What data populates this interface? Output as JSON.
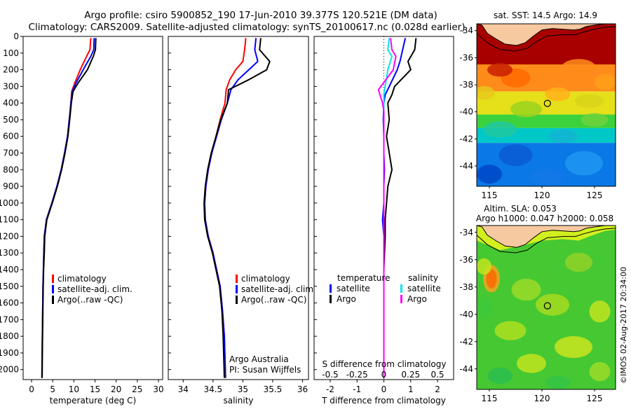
{
  "title": {
    "line1": "Argo profile: csiro 5900852_190 17-Jun-2010 39.377S 120.521E (DM data)",
    "line2": "Climatology: CARS2009. Satellite-adjusted climatology: synTS_20100617.nc (0.028d earlier)"
  },
  "colors": {
    "climatology": "#ff0000",
    "satellite": "#0000ff",
    "argo": "#000000",
    "cyan": "#00e5ee",
    "magenta": "#ff00ff",
    "land": "#f7c9a0"
  },
  "credit": "©IMOS 02-Aug-2017 20:34:00",
  "depth_axis": {
    "ylim": [
      0,
      2060
    ],
    "ticks": [
      0,
      100,
      200,
      300,
      400,
      500,
      600,
      700,
      800,
      900,
      1000,
      1100,
      1200,
      1300,
      1400,
      1500,
      1600,
      1700,
      1800,
      1900,
      2000
    ]
  },
  "chart_data": [
    {
      "type": "line",
      "id": "temperature",
      "xlabel": "temperature (deg C)",
      "ylabel": "depth",
      "xlim": [
        -2,
        31
      ],
      "ylim": [
        0,
        2060
      ],
      "y_inverted": true,
      "xticks": [
        0,
        5,
        10,
        15,
        20,
        25,
        30
      ],
      "legend": {
        "placement": "lower-left",
        "entries": [
          "climatology",
          "satellite-adj. clim.",
          "Argo(..raw -QC)"
        ]
      },
      "series": [
        {
          "name": "climatology",
          "color": "#ff0000",
          "x": [
            14.0,
            13.8,
            13.0,
            11.5,
            10.2,
            9.5,
            9.3,
            9.0,
            8.5,
            7.8,
            7.0,
            6.0,
            4.8,
            3.5,
            3.0,
            2.9,
            2.8,
            2.7,
            2.6,
            2.5,
            2.45
          ],
          "y": [
            10,
            80,
            120,
            200,
            280,
            330,
            400,
            480,
            600,
            700,
            800,
            900,
            1000,
            1100,
            1200,
            1300,
            1400,
            1500,
            1700,
            1900,
            2050
          ]
        },
        {
          "name": "satellite-adj. clim.",
          "color": "#0000ff",
          "x": [
            14.8,
            14.7,
            14.0,
            12.2,
            10.5,
            9.6,
            9.3,
            9.0,
            8.5,
            7.8,
            7.0,
            6.0,
            4.8,
            3.5,
            3.0,
            2.9,
            2.8,
            2.7,
            2.6,
            2.5,
            2.45
          ],
          "y": [
            10,
            80,
            120,
            200,
            280,
            330,
            400,
            480,
            600,
            700,
            800,
            900,
            1000,
            1100,
            1200,
            1300,
            1400,
            1500,
            1700,
            1900,
            2050
          ]
        },
        {
          "name": "Argo(..raw -QC)",
          "color": "#000000",
          "x": [
            15.2,
            15.1,
            14.6,
            13.2,
            11.0,
            9.8,
            9.4,
            9.1,
            8.6,
            7.9,
            7.1,
            6.1,
            4.9,
            3.6,
            3.1,
            3.0,
            2.85,
            2.75,
            2.65,
            2.55,
            2.5
          ],
          "y": [
            10,
            80,
            120,
            200,
            280,
            330,
            400,
            480,
            600,
            700,
            800,
            900,
            1000,
            1100,
            1200,
            1300,
            1400,
            1500,
            1700,
            1900,
            2050
          ]
        }
      ]
    },
    {
      "type": "line",
      "id": "salinity",
      "xlabel": "salinity",
      "ylabel": "depth",
      "xlim": [
        33.75,
        36.1
      ],
      "ylim": [
        0,
        2060
      ],
      "y_inverted": true,
      "xticks": [
        34,
        34.5,
        35,
        35.5,
        36
      ],
      "xtick_labels": [
        "34",
        "34.5",
        "35",
        "35.5",
        "36"
      ],
      "legend": {
        "placement": "lower-right",
        "entries": [
          "climatology",
          "satellite-adj. clim.",
          "Argo(..raw -QC)"
        ]
      },
      "annotation": {
        "line1": "Argo Australia",
        "line2": "PI: Susan Wijffels"
      },
      "series": [
        {
          "name": "climatology",
          "color": "#ff0000",
          "x": [
            35.05,
            35.03,
            35.0,
            34.88,
            34.78,
            34.72,
            34.7,
            34.62,
            34.55,
            34.48,
            34.42,
            34.38,
            34.36,
            34.37,
            34.42,
            34.5,
            34.56,
            34.62,
            34.66,
            34.69,
            34.71
          ],
          "y": [
            10,
            80,
            150,
            200,
            260,
            320,
            400,
            500,
            600,
            700,
            800,
            900,
            1000,
            1100,
            1200,
            1300,
            1400,
            1500,
            1650,
            1800,
            2050
          ]
        },
        {
          "name": "satellite-adj. clim.",
          "color": "#0000ff",
          "x": [
            35.22,
            35.2,
            35.25,
            35.1,
            34.92,
            34.8,
            34.74,
            34.64,
            34.56,
            34.48,
            34.42,
            34.38,
            34.36,
            34.37,
            34.42,
            34.5,
            34.56,
            34.62,
            34.66,
            34.69,
            34.71
          ],
          "y": [
            10,
            80,
            150,
            200,
            260,
            320,
            400,
            500,
            600,
            700,
            800,
            900,
            1000,
            1100,
            1200,
            1300,
            1400,
            1500,
            1650,
            1800,
            2050
          ]
        },
        {
          "name": "Argo(..raw -QC)",
          "color": "#000000",
          "x": [
            35.3,
            35.28,
            35.45,
            35.4,
            35.1,
            34.76,
            34.74,
            34.63,
            34.55,
            34.47,
            34.41,
            34.37,
            34.35,
            34.36,
            34.41,
            34.49,
            34.55,
            34.61,
            34.65,
            34.67,
            34.69
          ],
          "y": [
            10,
            80,
            150,
            200,
            260,
            320,
            400,
            500,
            600,
            700,
            800,
            900,
            1000,
            1100,
            1200,
            1300,
            1400,
            1500,
            1650,
            1800,
            2050
          ]
        }
      ]
    },
    {
      "type": "line",
      "id": "difference",
      "xlabel": "T difference from climatology",
      "top_label": "S difference from climatology",
      "xlim": [
        -2.6,
        2.6
      ],
      "ylim": [
        0,
        2060
      ],
      "y_inverted": true,
      "xticks": [
        -2,
        -1,
        0,
        1,
        2
      ],
      "top_xticks": [
        -0.5,
        -0.25,
        0,
        0.25,
        0.5
      ],
      "top_xtick_labels": [
        "-0.5",
        "-0.25",
        "0",
        "0.25",
        "0.5"
      ],
      "legend": {
        "placement": "lower-center",
        "headers": [
          "temperature",
          "salinity"
        ],
        "entries": [
          "satellite",
          "Argo",
          "satellite",
          "Argo"
        ]
      },
      "series": [
        {
          "name": "temperature satellite",
          "color": "#0000ff",
          "x": [
            0.8,
            0.7,
            0.6,
            0.5,
            0.2,
            0.05,
            0.0,
            -0.02,
            0.0,
            0.0,
            0.02,
            0.0,
            0.0,
            -0.05,
            0.0,
            0.0,
            0.0,
            0.0
          ],
          "y": [
            10,
            80,
            150,
            200,
            300,
            350,
            400,
            500,
            600,
            700,
            800,
            900,
            1000,
            1100,
            1200,
            1400,
            1700,
            2050
          ]
        },
        {
          "name": "temperature Argo",
          "color": "#000000",
          "x": [
            1.2,
            1.15,
            0.9,
            1.0,
            0.4,
            0.3,
            0.15,
            0.2,
            0.1,
            0.2,
            0.3,
            0.15,
            0.1,
            0.05,
            0.05,
            0.0,
            0.0,
            0.0
          ],
          "y": [
            10,
            80,
            150,
            200,
            300,
            350,
            400,
            500,
            600,
            700,
            800,
            900,
            1000,
            1100,
            1200,
            1400,
            1700,
            2050
          ]
        },
        {
          "name": "salinity satellite",
          "color": "#00e5ee",
          "x": [
            0.2,
            0.15,
            0.3,
            0.15,
            0.05,
            0.0,
            0.0,
            0.0,
            0.0,
            0.0,
            0.0,
            0.0,
            0.0,
            0.0,
            0.0,
            0.0
          ],
          "y": [
            10,
            80,
            120,
            200,
            300,
            350,
            400,
            500,
            700,
            900,
            1100,
            1300,
            1500,
            1700,
            1900,
            2050
          ]
        },
        {
          "name": "salinity Argo",
          "color": "#ff00ff",
          "x": [
            0.25,
            0.3,
            0.45,
            0.35,
            -0.2,
            -0.05,
            0.0,
            0.0,
            0.0,
            0.0,
            0.0,
            0.0,
            0.0,
            0.0,
            0.0,
            0.0
          ],
          "y": [
            10,
            80,
            120,
            200,
            320,
            400,
            450,
            500,
            700,
            900,
            1100,
            1300,
            1500,
            1700,
            1900,
            2050
          ]
        }
      ]
    },
    {
      "type": "heatmap",
      "id": "sst-map",
      "title": "sat. SST: 14.5 Argo: 14.9",
      "xlim": [
        113.8,
        127
      ],
      "ylim": [
        -45.5,
        -33.5
      ],
      "xticks": [
        115,
        120,
        125
      ],
      "yticks": [
        -34,
        -36,
        -38,
        -40,
        -42,
        -44
      ],
      "argo_marker": {
        "lon": 120.521,
        "lat": -39.377
      },
      "color_bands": [
        {
          "lat_from": -33.5,
          "lat_to": -36.5,
          "color": "#a80000"
        },
        {
          "lat_from": -36.5,
          "lat_to": -38.5,
          "color": "#ff8c1a"
        },
        {
          "lat_from": -38.5,
          "lat_to": -40.2,
          "color": "#e6e01a"
        },
        {
          "lat_from": -40.2,
          "lat_to": -41.2,
          "color": "#3cd23c"
        },
        {
          "lat_from": -41.2,
          "lat_to": -42.3,
          "color": "#00c8c8"
        },
        {
          "lat_from": -42.3,
          "lat_to": -45.5,
          "color": "#0a78e6"
        }
      ]
    },
    {
      "type": "heatmap",
      "id": "sla-map",
      "title_line1": "Altim. SLA: 0.053",
      "title_line2": "Argo h1000: 0.047 h2000: 0.058",
      "xlim": [
        113.8,
        127
      ],
      "ylim": [
        -45.5,
        -33.5
      ],
      "xticks": [
        115,
        120,
        125
      ],
      "yticks": [
        -34,
        -36,
        -38,
        -40,
        -42,
        -44
      ],
      "argo_marker": {
        "lon": 120.521,
        "lat": -39.377
      }
    }
  ]
}
